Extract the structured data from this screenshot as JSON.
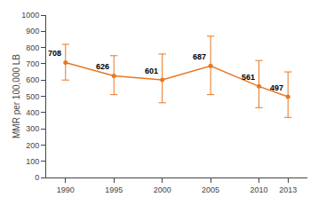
{
  "chart_data": {
    "type": "line",
    "x": [
      1990,
      1995,
      2000,
      2005,
      2010,
      2013
    ],
    "values": [
      708,
      626,
      601,
      687,
      561,
      497
    ],
    "upper": [
      820,
      750,
      760,
      870,
      720,
      650
    ],
    "lower": [
      600,
      510,
      460,
      510,
      430,
      370
    ],
    "color": "#E87722",
    "marker": "circle",
    "ylabel": "MMR per 100,000 LB",
    "xlim": [
      1988,
      2015
    ],
    "xticks": [
      1990,
      1995,
      2000,
      2005,
      2010,
      2013
    ],
    "ylim": [
      0,
      1000
    ],
    "yticks": [
      0,
      100,
      200,
      300,
      400,
      500,
      600,
      700,
      800,
      900,
      1000
    ],
    "grid": false,
    "data_labels": true
  }
}
